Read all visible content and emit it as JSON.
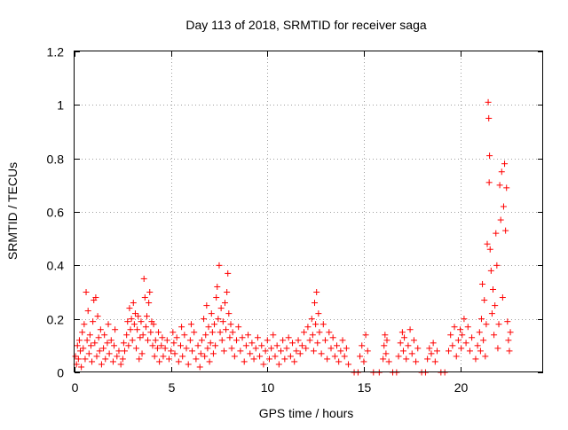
{
  "chart_data": {
    "type": "scatter",
    "title": "Day 113 of 2018, SRMTID for receiver saga",
    "xlabel": "GPS time / hours",
    "ylabel": "SRMTID / TECUs",
    "xlim": [
      0,
      24.3
    ],
    "ylim": [
      0,
      1.2
    ],
    "xticks": [
      0,
      5,
      10,
      15,
      20
    ],
    "xtick_labels": [
      "0",
      "5",
      "10",
      "15",
      "20"
    ],
    "yticks": [
      0,
      0.2,
      0.4,
      0.6,
      0.8,
      1.0,
      1.2
    ],
    "ytick_labels": [
      "0",
      "0.2",
      "0.4",
      "0.6",
      "0.8",
      "1",
      "1.2"
    ],
    "grid": true,
    "marker": "+",
    "color": "#ff0000",
    "series": [
      {
        "name": "SRMTID",
        "points": [
          [
            0.05,
            0.06
          ],
          [
            0.1,
            0.03
          ],
          [
            0.15,
            0.1
          ],
          [
            0.2,
            0.05
          ],
          [
            0.25,
            0.12
          ],
          [
            0.3,
            0.08
          ],
          [
            0.35,
            0.02
          ],
          [
            0.4,
            0.15
          ],
          [
            0.45,
            0.09
          ],
          [
            0.5,
            0.18
          ],
          [
            0.55,
            0.05
          ],
          [
            0.6,
            0.3
          ],
          [
            0.65,
            0.12
          ],
          [
            0.7,
            0.23
          ],
          [
            0.75,
            0.07
          ],
          [
            0.8,
            0.14
          ],
          [
            0.85,
            0.1
          ],
          [
            0.9,
            0.04
          ],
          [
            0.95,
            0.19
          ],
          [
            1.0,
            0.27
          ],
          [
            1.05,
            0.11
          ],
          [
            1.1,
            0.28
          ],
          [
            1.15,
            0.06
          ],
          [
            1.2,
            0.21
          ],
          [
            1.25,
            0.13
          ],
          [
            1.3,
            0.08
          ],
          [
            1.35,
            0.16
          ],
          [
            1.4,
            0.03
          ],
          [
            1.5,
            0.09
          ],
          [
            1.55,
            0.14
          ],
          [
            1.6,
            0.05
          ],
          [
            1.7,
            0.11
          ],
          [
            1.75,
            0.18
          ],
          [
            1.8,
            0.07
          ],
          [
            1.9,
            0.12
          ],
          [
            2.0,
            0.04
          ],
          [
            2.05,
            0.1
          ],
          [
            2.1,
            0.16
          ],
          [
            2.2,
            0.06
          ],
          [
            2.3,
            0.08
          ],
          [
            2.4,
            0.03
          ],
          [
            2.5,
            0.05
          ],
          [
            2.55,
            0.11
          ],
          [
            2.6,
            0.08
          ],
          [
            2.7,
            0.14
          ],
          [
            2.75,
            0.19
          ],
          [
            2.8,
            0.1
          ],
          [
            2.85,
            0.24
          ],
          [
            2.9,
            0.16
          ],
          [
            2.95,
            0.2
          ],
          [
            3.0,
            0.12
          ],
          [
            3.05,
            0.26
          ],
          [
            3.1,
            0.18
          ],
          [
            3.15,
            0.22
          ],
          [
            3.2,
            0.09
          ],
          [
            3.25,
            0.16
          ],
          [
            3.3,
            0.21
          ],
          [
            3.35,
            0.05
          ],
          [
            3.4,
            0.13
          ],
          [
            3.45,
            0.19
          ],
          [
            3.5,
            0.07
          ],
          [
            3.55,
            0.14
          ],
          [
            3.6,
            0.35
          ],
          [
            3.65,
            0.28
          ],
          [
            3.7,
            0.17
          ],
          [
            3.75,
            0.21
          ],
          [
            3.8,
            0.12
          ],
          [
            3.85,
            0.26
          ],
          [
            3.9,
            0.3
          ],
          [
            3.95,
            0.15
          ],
          [
            4.0,
            0.19
          ],
          [
            4.05,
            0.1
          ],
          [
            4.1,
            0.18
          ],
          [
            4.15,
            0.06
          ],
          [
            4.2,
            0.12
          ],
          [
            4.3,
            0.09
          ],
          [
            4.35,
            0.15
          ],
          [
            4.4,
            0.04
          ],
          [
            4.5,
            0.1
          ],
          [
            4.55,
            0.13
          ],
          [
            4.6,
            0.06
          ],
          [
            4.7,
            0.09
          ],
          [
            4.8,
            0.12
          ],
          [
            4.9,
            0.05
          ],
          [
            5.0,
            0.08
          ],
          [
            5.1,
            0.15
          ],
          [
            5.15,
            0.11
          ],
          [
            5.2,
            0.07
          ],
          [
            5.3,
            0.13
          ],
          [
            5.4,
            0.04
          ],
          [
            5.5,
            0.1
          ],
          [
            5.55,
            0.17
          ],
          [
            5.6,
            0.06
          ],
          [
            5.7,
            0.14
          ],
          [
            5.8,
            0.09
          ],
          [
            5.9,
            0.03
          ],
          [
            6.0,
            0.12
          ],
          [
            6.05,
            0.18
          ],
          [
            6.1,
            0.08
          ],
          [
            6.2,
            0.15
          ],
          [
            6.3,
            0.05
          ],
          [
            6.4,
            0.1
          ],
          [
            6.5,
            0.02
          ],
          [
            6.55,
            0.07
          ],
          [
            6.6,
            0.12
          ],
          [
            6.7,
            0.2
          ],
          [
            6.75,
            0.06
          ],
          [
            6.8,
            0.14
          ],
          [
            6.85,
            0.25
          ],
          [
            6.9,
            0.09
          ],
          [
            6.95,
            0.17
          ],
          [
            7.0,
            0.04
          ],
          [
            7.05,
            0.11
          ],
          [
            7.1,
            0.22
          ],
          [
            7.15,
            0.15
          ],
          [
            7.2,
            0.07
          ],
          [
            7.25,
            0.18
          ],
          [
            7.3,
            0.1
          ],
          [
            7.35,
            0.28
          ],
          [
            7.4,
            0.32
          ],
          [
            7.45,
            0.2
          ],
          [
            7.5,
            0.4
          ],
          [
            7.55,
            0.15
          ],
          [
            7.6,
            0.24
          ],
          [
            7.65,
            0.12
          ],
          [
            7.7,
            0.19
          ],
          [
            7.75,
            0.08
          ],
          [
            7.8,
            0.26
          ],
          [
            7.85,
            0.16
          ],
          [
            7.9,
            0.3
          ],
          [
            7.95,
            0.37
          ],
          [
            8.0,
            0.22
          ],
          [
            8.05,
            0.13
          ],
          [
            8.1,
            0.18
          ],
          [
            8.15,
            0.09
          ],
          [
            8.2,
            0.15
          ],
          [
            8.3,
            0.06
          ],
          [
            8.4,
            0.12
          ],
          [
            8.5,
            0.17
          ],
          [
            8.6,
            0.08
          ],
          [
            8.7,
            0.13
          ],
          [
            8.8,
            0.04
          ],
          [
            8.9,
            0.1
          ],
          [
            9.0,
            0.14
          ],
          [
            9.1,
            0.07
          ],
          [
            9.2,
            0.11
          ],
          [
            9.3,
            0.05
          ],
          [
            9.4,
            0.09
          ],
          [
            9.5,
            0.13
          ],
          [
            9.6,
            0.06
          ],
          [
            9.7,
            0.1
          ],
          [
            9.8,
            0.03
          ],
          [
            9.9,
            0.08
          ],
          [
            10.0,
            0.12
          ],
          [
            10.1,
            0.05
          ],
          [
            10.2,
            0.09
          ],
          [
            10.3,
            0.14
          ],
          [
            10.4,
            0.06
          ],
          [
            10.5,
            0.1
          ],
          [
            10.6,
            0.03
          ],
          [
            10.7,
            0.08
          ],
          [
            10.8,
            0.12
          ],
          [
            10.9,
            0.05
          ],
          [
            11.0,
            0.09
          ],
          [
            11.1,
            0.13
          ],
          [
            11.2,
            0.06
          ],
          [
            11.3,
            0.11
          ],
          [
            11.4,
            0.04
          ],
          [
            11.5,
            0.08
          ],
          [
            11.6,
            0.12
          ],
          [
            11.7,
            0.07
          ],
          [
            11.8,
            0.1
          ],
          [
            11.9,
            0.15
          ],
          [
            12.0,
            0.09
          ],
          [
            12.1,
            0.17
          ],
          [
            12.2,
            0.12
          ],
          [
            12.3,
            0.2
          ],
          [
            12.35,
            0.14
          ],
          [
            12.4,
            0.08
          ],
          [
            12.45,
            0.26
          ],
          [
            12.5,
            0.18
          ],
          [
            12.55,
            0.3
          ],
          [
            12.6,
            0.11
          ],
          [
            12.65,
            0.22
          ],
          [
            12.7,
            0.15
          ],
          [
            12.8,
            0.07
          ],
          [
            12.9,
            0.18
          ],
          [
            13.0,
            0.12
          ],
          [
            13.1,
            0.05
          ],
          [
            13.2,
            0.15
          ],
          [
            13.3,
            0.09
          ],
          [
            13.4,
            0.13
          ],
          [
            13.5,
            0.06
          ],
          [
            13.6,
            0.1
          ],
          [
            13.7,
            0.04
          ],
          [
            13.8,
            0.08
          ],
          [
            13.9,
            0.12
          ],
          [
            14.0,
            0.06
          ],
          [
            14.1,
            0.09
          ],
          [
            14.2,
            0.03
          ],
          [
            14.5,
            0.0
          ],
          [
            14.7,
            0.0
          ],
          [
            14.8,
            0.06
          ],
          [
            14.9,
            0.1
          ],
          [
            15.0,
            0.04
          ],
          [
            15.1,
            0.14
          ],
          [
            15.2,
            0.08
          ],
          [
            15.5,
            0.0
          ],
          [
            15.8,
            0.0
          ],
          [
            16.0,
            0.05
          ],
          [
            16.05,
            0.1
          ],
          [
            16.1,
            0.14
          ],
          [
            16.15,
            0.07
          ],
          [
            16.2,
            0.12
          ],
          [
            16.3,
            0.04
          ],
          [
            16.5,
            0.0
          ],
          [
            16.7,
            0.0
          ],
          [
            16.8,
            0.06
          ],
          [
            16.9,
            0.11
          ],
          [
            17.0,
            0.15
          ],
          [
            17.05,
            0.08
          ],
          [
            17.1,
            0.13
          ],
          [
            17.2,
            0.05
          ],
          [
            17.3,
            0.1
          ],
          [
            17.4,
            0.16
          ],
          [
            17.5,
            0.07
          ],
          [
            17.6,
            0.12
          ],
          [
            17.7,
            0.04
          ],
          [
            17.8,
            0.09
          ],
          [
            18.0,
            0.0
          ],
          [
            18.2,
            0.0
          ],
          [
            18.3,
            0.05
          ],
          [
            18.4,
            0.09
          ],
          [
            18.5,
            0.07
          ],
          [
            18.6,
            0.11
          ],
          [
            18.7,
            0.04
          ],
          [
            18.8,
            0.08
          ],
          [
            19.0,
            0.0
          ],
          [
            19.2,
            0.0
          ],
          [
            19.4,
            0.08
          ],
          [
            19.5,
            0.14
          ],
          [
            19.6,
            0.1
          ],
          [
            19.7,
            0.17
          ],
          [
            19.8,
            0.06
          ],
          [
            19.9,
            0.12
          ],
          [
            20.0,
            0.16
          ],
          [
            20.05,
            0.09
          ],
          [
            20.1,
            0.14
          ],
          [
            20.2,
            0.2
          ],
          [
            20.3,
            0.11
          ],
          [
            20.4,
            0.17
          ],
          [
            20.5,
            0.08
          ],
          [
            20.6,
            0.13
          ],
          [
            20.8,
            0.05
          ],
          [
            20.9,
            0.1
          ],
          [
            21.0,
            0.15
          ],
          [
            21.05,
            0.08
          ],
          [
            21.1,
            0.2
          ],
          [
            21.15,
            0.33
          ],
          [
            21.2,
            0.12
          ],
          [
            21.25,
            0.27
          ],
          [
            21.3,
            0.06
          ],
          [
            21.35,
            0.18
          ],
          [
            21.4,
            0.48
          ],
          [
            21.45,
            1.01
          ],
          [
            21.48,
            0.95
          ],
          [
            21.5,
            0.71
          ],
          [
            21.52,
            0.81
          ],
          [
            21.55,
            0.46
          ],
          [
            21.6,
            0.38
          ],
          [
            21.65,
            0.22
          ],
          [
            21.7,
            0.31
          ],
          [
            21.75,
            0.14
          ],
          [
            21.8,
            0.25
          ],
          [
            21.85,
            0.52
          ],
          [
            21.9,
            0.4
          ],
          [
            21.95,
            0.09
          ],
          [
            22.0,
            0.18
          ],
          [
            22.05,
            0.7
          ],
          [
            22.1,
            0.57
          ],
          [
            22.15,
            0.75
          ],
          [
            22.2,
            0.28
          ],
          [
            22.25,
            0.62
          ],
          [
            22.3,
            0.78
          ],
          [
            22.35,
            0.53
          ],
          [
            22.4,
            0.69
          ],
          [
            22.45,
            0.19
          ],
          [
            22.5,
            0.12
          ],
          [
            22.55,
            0.08
          ],
          [
            22.6,
            0.15
          ]
        ]
      }
    ]
  }
}
